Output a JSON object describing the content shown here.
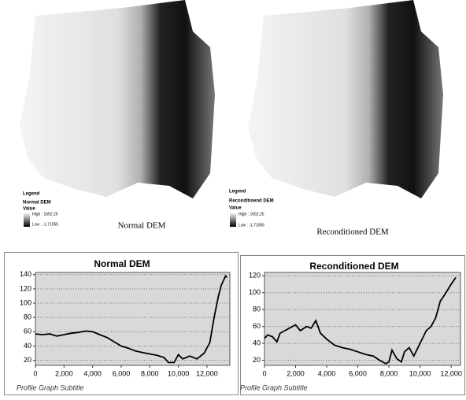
{
  "maps": [
    {
      "legend_title": "Legend",
      "layer": "Normal DEM",
      "value_label": "Value",
      "high": "High : 1652.25",
      "low": "Low : -1.71055",
      "caption": "Normal DEM"
    },
    {
      "legend_title": "Legend",
      "layer": "Reconditioend DEM",
      "value_label": "Value",
      "high": "High : 1652.25",
      "low": "Low : -1.71055",
      "caption": "Reconditioned DEM"
    }
  ],
  "chart_data": [
    {
      "type": "line",
      "title": "Normal DEM",
      "subtitle": "Profile Graph Subtitle",
      "color": "#000000",
      "grid": true,
      "x": [
        0,
        500,
        1000,
        1500,
        2000,
        2500,
        3000,
        3500,
        4000,
        4500,
        5000,
        5500,
        6000,
        6500,
        7000,
        7500,
        8000,
        8500,
        9000,
        9300,
        9700,
        10000,
        10300,
        10800,
        11300,
        11800,
        12200,
        12500,
        12800,
        13000,
        13300,
        13400
      ],
      "values": [
        57,
        56,
        57,
        54,
        56,
        58,
        59,
        61,
        60,
        56,
        52,
        46,
        40,
        37,
        33,
        31,
        29,
        27,
        24,
        17,
        17,
        28,
        22,
        26,
        22,
        30,
        45,
        80,
        110,
        125,
        138,
        136
      ],
      "xlim": [
        0,
        13600
      ],
      "ylim": [
        13,
        143
      ],
      "xticks": [
        0,
        {
          "value": 2000,
          "label": "2,000"
        },
        {
          "value": 4000,
          "label": "4,000"
        },
        {
          "value": 6000,
          "label": "6,000"
        },
        {
          "value": 8000,
          "label": "8,000"
        },
        {
          "value": 10000,
          "label": "10,000"
        },
        {
          "value": 12000,
          "label": "12,000"
        }
      ],
      "yticks": [
        20,
        40,
        60,
        80,
        100,
        120,
        140
      ]
    },
    {
      "type": "line",
      "title": "Reconditioned DEM",
      "subtitle": "Profile Graph Subtitle",
      "color": "#000000",
      "grid": true,
      "x": [
        0,
        200,
        500,
        800,
        1000,
        1300,
        1600,
        2000,
        2300,
        2700,
        3000,
        3300,
        3600,
        4000,
        4500,
        5000,
        5500,
        6000,
        6500,
        7000,
        7400,
        7800,
        8000,
        8200,
        8500,
        8800,
        9000,
        9300,
        9600,
        10000,
        10400,
        10700,
        11000,
        11300,
        11600,
        12000,
        12300
      ],
      "values": [
        46,
        50,
        48,
        42,
        52,
        55,
        58,
        62,
        55,
        60,
        58,
        67,
        52,
        45,
        38,
        35,
        33,
        30,
        27,
        25,
        20,
        16,
        18,
        32,
        22,
        18,
        30,
        35,
        25,
        40,
        55,
        60,
        70,
        90,
        98,
        110,
        118
      ],
      "xlim": [
        0,
        12600
      ],
      "ylim": [
        14,
        124
      ],
      "xticks": [
        0,
        {
          "value": 2000,
          "label": "2,000"
        },
        {
          "value": 4000,
          "label": "4,000"
        },
        {
          "value": 6000,
          "label": "6,000"
        },
        {
          "value": 8000,
          "label": "8,000"
        },
        {
          "value": 10000,
          "label": "10,000"
        },
        {
          "value": 12000,
          "label": "12,000"
        }
      ],
      "yticks": [
        20,
        40,
        60,
        80,
        100,
        120
      ]
    }
  ]
}
